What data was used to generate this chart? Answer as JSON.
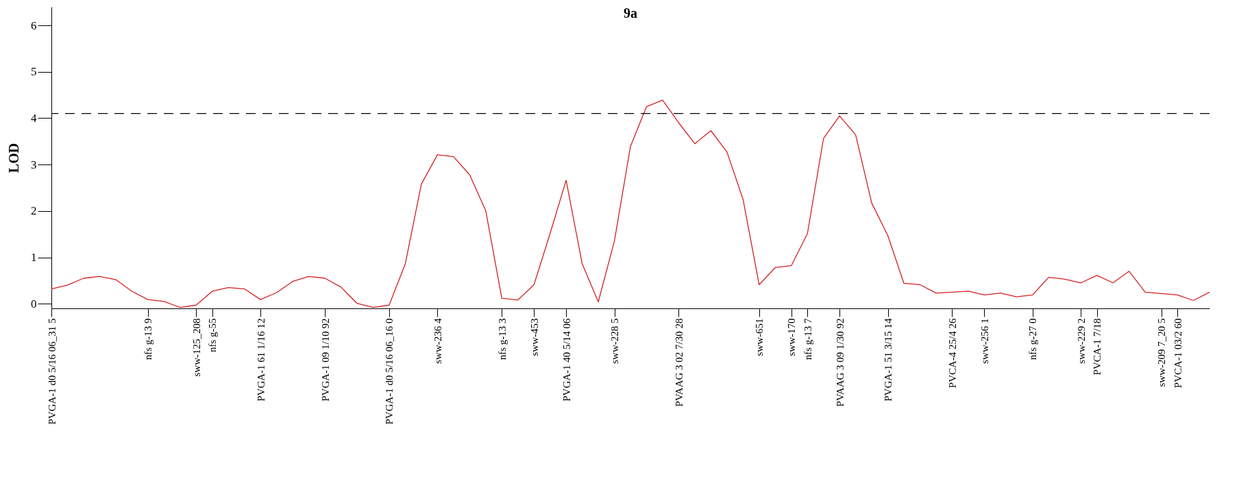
{
  "chart_data": {
    "type": "line",
    "title": "9a",
    "ylabel": "LOD",
    "ylim": [
      -0.1,
      6.4
    ],
    "yticks": [
      0,
      1,
      2,
      3,
      4,
      5,
      6
    ],
    "categories": [
      "PVGA-1 d0 5/16 06_31 5",
      null,
      null,
      null,
      null,
      null,
      "nfs g-13 9",
      null,
      null,
      "sww-125_208",
      "nfs g-55",
      null,
      null,
      "PVGA-1 61 1/16 12",
      null,
      null,
      null,
      "PVGA-1 09 1/10 92",
      null,
      null,
      null,
      "PVGA-1 d0 5/16 06_16 0",
      null,
      null,
      "sww-236 4",
      null,
      null,
      null,
      "nfs g-13 3",
      null,
      "sww-453",
      null,
      "PVGA-1 40 5/14 06",
      null,
      null,
      "sww-228 5",
      null,
      null,
      null,
      "PVAAG 3 02 7/30 28",
      null,
      null,
      null,
      null,
      "sww-651",
      null,
      "sww-170",
      "nfs g-13 7",
      null,
      "PVAAG 3 09 1/30 92",
      null,
      null,
      "PVGA-1 51 3/15 14",
      null,
      null,
      null,
      "PVCA-4 25/4 26",
      null,
      "sww-256 1",
      null,
      null,
      "nfs g-27 0",
      null,
      null,
      "sww-229 2",
      "PVCA-1 7/18",
      null,
      null,
      null,
      "sww-209 7_20 5",
      "PVCA-1 03/2 60",
      null,
      null
    ],
    "series": [
      {
        "color": "#d42020",
        "values": [
          0.32,
          0.4,
          0.55,
          0.59,
          0.52,
          0.27,
          0.09,
          0.05,
          -0.08,
          -0.03,
          0.27,
          0.35,
          0.32,
          0.09,
          0.24,
          0.48,
          0.59,
          0.55,
          0.36,
          0.01,
          -0.08,
          -0.03,
          0.86,
          2.58,
          3.21,
          3.17,
          2.78,
          2.01,
          0.12,
          0.08,
          0.41,
          1.51,
          2.66,
          0.86,
          0.04,
          1.35,
          3.39,
          4.25,
          4.39,
          3.9,
          3.45,
          3.73,
          3.27,
          2.25,
          0.41,
          0.78,
          0.82,
          1.51,
          3.56,
          4.05,
          3.64,
          2.17,
          1.47,
          0.44,
          0.41,
          0.23,
          0.25,
          0.27,
          0.19,
          0.23,
          0.15,
          0.19,
          0.57,
          0.53,
          0.45,
          0.61,
          0.45,
          0.7,
          0.25,
          0.22,
          0.19,
          0.07,
          0.25
        ]
      }
    ],
    "ref_lines": [
      {
        "axis": "y",
        "value": 4.1,
        "line_style": "dashed",
        "color": "#000000"
      }
    ],
    "grid": false,
    "legend": false,
    "marker": "none",
    "line_style": "solid"
  }
}
